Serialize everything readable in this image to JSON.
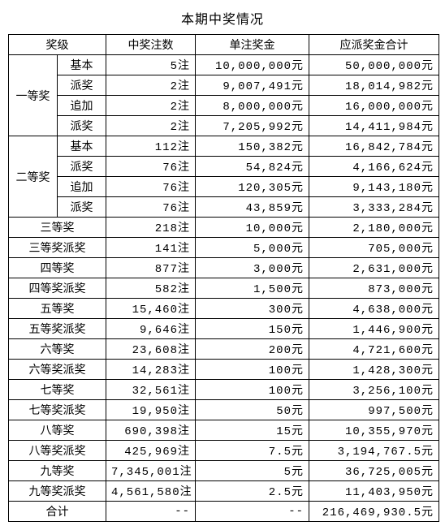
{
  "title": "本期中奖情况",
  "headers": {
    "level": "奖级",
    "count": "中奖注数",
    "unit_prize": "单注奖金",
    "total_prize": "应派奖金合计"
  },
  "group1": {
    "name": "一等奖",
    "rows": [
      {
        "sub": "基本",
        "count": "5注",
        "unit": "10,000,000元",
        "total": "50,000,000元"
      },
      {
        "sub": "派奖",
        "count": "2注",
        "unit": "9,007,491元",
        "total": "18,014,982元"
      },
      {
        "sub": "追加",
        "count": "2注",
        "unit": "8,000,000元",
        "total": "16,000,000元"
      },
      {
        "sub": "派奖",
        "count": "2注",
        "unit": "7,205,992元",
        "total": "14,411,984元"
      }
    ]
  },
  "group2": {
    "name": "二等奖",
    "rows": [
      {
        "sub": "基本",
        "count": "112注",
        "unit": "150,382元",
        "total": "16,842,784元"
      },
      {
        "sub": "派奖",
        "count": "76注",
        "unit": "54,824元",
        "total": "4,166,624元"
      },
      {
        "sub": "追加",
        "count": "76注",
        "unit": "120,305元",
        "total": "9,143,180元"
      },
      {
        "sub": "派奖",
        "count": "76注",
        "unit": "43,859元",
        "total": "3,333,284元"
      }
    ]
  },
  "simple_rows": [
    {
      "name": "三等奖",
      "count": "218注",
      "unit": "10,000元",
      "total": "2,180,000元"
    },
    {
      "name": "三等奖派奖",
      "count": "141注",
      "unit": "5,000元",
      "total": "705,000元"
    },
    {
      "name": "四等奖",
      "count": "877注",
      "unit": "3,000元",
      "total": "2,631,000元"
    },
    {
      "name": "四等奖派奖",
      "count": "582注",
      "unit": "1,500元",
      "total": "873,000元"
    },
    {
      "name": "五等奖",
      "count": "15,460注",
      "unit": "300元",
      "total": "4,638,000元"
    },
    {
      "name": "五等奖派奖",
      "count": "9,646注",
      "unit": "150元",
      "total": "1,446,900元"
    },
    {
      "name": "六等奖",
      "count": "23,608注",
      "unit": "200元",
      "total": "4,721,600元"
    },
    {
      "name": "六等奖派奖",
      "count": "14,283注",
      "unit": "100元",
      "total": "1,428,300元"
    },
    {
      "name": "七等奖",
      "count": "32,561注",
      "unit": "100元",
      "total": "3,256,100元"
    },
    {
      "name": "七等奖派奖",
      "count": "19,950注",
      "unit": "50元",
      "total": "997,500元"
    },
    {
      "name": "八等奖",
      "count": "690,398注",
      "unit": "15元",
      "total": "10,355,970元"
    },
    {
      "name": "八等奖派奖",
      "count": "425,969注",
      "unit": "7.5元",
      "total": "3,194,767.5元"
    },
    {
      "name": "九等奖",
      "count": "7,345,001注",
      "unit": "5元",
      "total": "36,725,005元"
    },
    {
      "name": "九等奖派奖",
      "count": "4,561,580注",
      "unit": "2.5元",
      "total": "11,403,950元"
    }
  ],
  "total_row": {
    "name": "合计",
    "count": "--",
    "unit": "--",
    "total": "216,469,930.5元"
  }
}
